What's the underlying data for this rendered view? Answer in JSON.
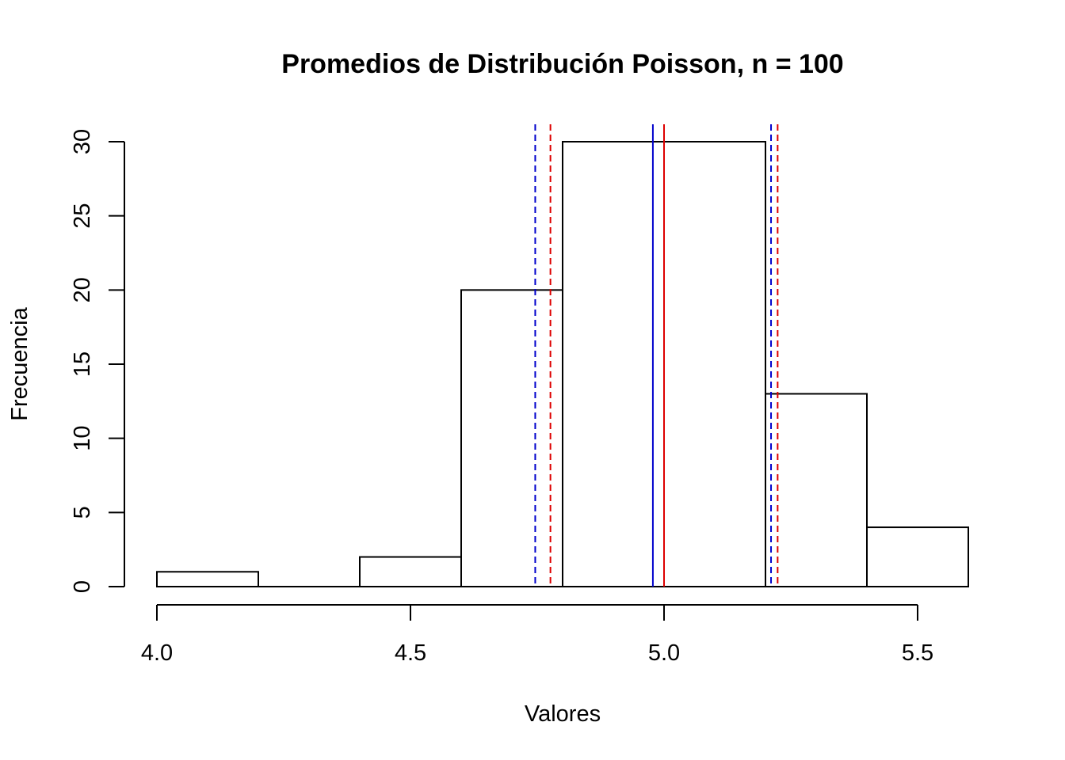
{
  "chart_data": {
    "type": "histogram",
    "title": "Promedios de Distribución Poisson, n = 100",
    "xlabel": "Valores",
    "ylabel": "Frecuencia",
    "bins": [
      {
        "start": 4.0,
        "end": 4.2,
        "count": 1
      },
      {
        "start": 4.2,
        "end": 4.4,
        "count": 0
      },
      {
        "start": 4.4,
        "end": 4.6,
        "count": 2
      },
      {
        "start": 4.6,
        "end": 4.8,
        "count": 20
      },
      {
        "start": 4.8,
        "end": 5.0,
        "count": 30
      },
      {
        "start": 5.0,
        "end": 5.2,
        "count": 30
      },
      {
        "start": 5.2,
        "end": 5.4,
        "count": 13
      },
      {
        "start": 5.4,
        "end": 5.6,
        "count": 4
      }
    ],
    "xlim": [
      4.0,
      5.6
    ],
    "ylim": [
      0,
      30
    ],
    "x_ticks": [
      "4.0",
      "4.5",
      "5.0",
      "5.5"
    ],
    "x_tick_values": [
      4.0,
      4.5,
      5.0,
      5.5
    ],
    "y_ticks": [
      "0",
      "5",
      "10",
      "15",
      "20",
      "25",
      "30"
    ],
    "y_tick_values": [
      0,
      5,
      10,
      15,
      20,
      25,
      30
    ],
    "bar_fill": "#ffffff",
    "bar_stroke": "#000000",
    "grid": false,
    "vertical_lines": [
      {
        "x": 4.978,
        "color": "#0000cc",
        "style": "solid"
      },
      {
        "x": 5.0,
        "color": "#dd0000",
        "style": "solid"
      },
      {
        "x": 4.746,
        "color": "#0000cc",
        "style": "dashed"
      },
      {
        "x": 5.211,
        "color": "#0000cc",
        "style": "dashed"
      },
      {
        "x": 4.776,
        "color": "#dd0000",
        "style": "dashed"
      },
      {
        "x": 5.224,
        "color": "#dd0000",
        "style": "dashed"
      }
    ]
  }
}
